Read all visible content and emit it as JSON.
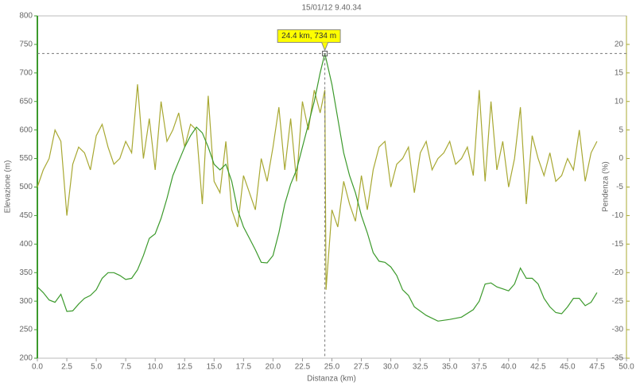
{
  "chart_data": {
    "type": "line",
    "title": "15/01/12 9.40.34",
    "x_label": "Distanza (km)",
    "y_label": "Elevazione (m)",
    "y2_label": "Pendenza (%)",
    "xlim": [
      0,
      50
    ],
    "xticks": [
      {
        "value": 0,
        "label": "0.0"
      },
      2.5,
      {
        "value": 5,
        "label": "5.0"
      },
      7.5,
      {
        "value": 10,
        "label": "10.0"
      },
      12.5,
      {
        "value": 15,
        "label": "15.0"
      },
      17.5,
      {
        "value": 20,
        "label": "20.0"
      },
      22.5,
      {
        "value": 25,
        "label": "25.0"
      },
      27.5,
      {
        "value": 30,
        "label": "30.0"
      },
      32.5,
      {
        "value": 35,
        "label": "35.0"
      },
      37.5,
      {
        "value": 40,
        "label": "40.0"
      },
      42.5,
      {
        "value": 45,
        "label": "45.0"
      },
      47.5,
      {
        "value": 50,
        "label": "50.0"
      }
    ],
    "ylim": [
      200,
      800
    ],
    "yticks": [
      200,
      250,
      300,
      350,
      400,
      450,
      500,
      550,
      600,
      650,
      700,
      750,
      800
    ],
    "y2lim": [
      -35,
      25
    ],
    "y2ticks": [
      -35,
      -30,
      -25,
      -20,
      -15,
      -10,
      -5,
      0,
      5,
      10,
      15,
      20
    ],
    "grid": false,
    "annotation": {
      "text": "24.4 km, 734 m",
      "x": 24.4,
      "y": 734
    },
    "series": [
      {
        "name": "Elevazione",
        "color": "#3c9a2c",
        "axis": "y",
        "x": [
          0,
          0.5,
          1,
          1.5,
          2,
          2.5,
          3,
          3.5,
          4,
          4.5,
          5,
          5.5,
          6,
          6.5,
          7,
          7.5,
          8,
          8.5,
          9,
          9.5,
          10,
          10.5,
          11,
          11.5,
          12,
          12.5,
          13,
          13.5,
          14,
          14.5,
          15,
          15.5,
          16,
          16.5,
          17,
          17.5,
          18,
          18.5,
          19,
          19.5,
          20,
          20.5,
          21,
          21.5,
          22,
          22.5,
          23,
          23.5,
          24,
          24.4,
          25,
          25.5,
          26,
          26.5,
          27,
          27.5,
          28,
          28.5,
          29,
          29.5,
          30,
          30.5,
          31,
          31.5,
          32,
          33,
          34,
          35,
          36,
          37,
          37.5,
          38,
          38.5,
          39,
          40,
          40.5,
          41,
          41.5,
          42,
          42.5,
          43,
          43.5,
          44,
          44.5,
          45,
          45.5,
          46,
          46.5,
          47,
          47.5
        ],
        "values": [
          325,
          315,
          302,
          298,
          312,
          282,
          283,
          295,
          305,
          310,
          320,
          340,
          350,
          350,
          345,
          338,
          340,
          355,
          380,
          410,
          418,
          445,
          480,
          520,
          545,
          570,
          590,
          605,
          595,
          570,
          540,
          530,
          540,
          510,
          460,
          430,
          410,
          390,
          368,
          367,
          380,
          420,
          470,
          505,
          530,
          570,
          610,
          650,
          700,
          734,
          680,
          620,
          560,
          520,
          490,
          450,
          420,
          385,
          370,
          368,
          360,
          345,
          320,
          310,
          290,
          275,
          265,
          268,
          272,
          285,
          300,
          330,
          332,
          325,
          318,
          330,
          358,
          340,
          340,
          330,
          305,
          290,
          280,
          278,
          290,
          305,
          305,
          292,
          298,
          315
        ]
      },
      {
        "name": "Pendenza",
        "color": "#a8a832",
        "axis": "y2",
        "x": [
          0,
          0.5,
          1,
          1.5,
          2,
          2.5,
          3,
          3.5,
          4,
          4.5,
          5,
          5.5,
          6,
          6.5,
          7,
          7.5,
          8,
          8.5,
          9,
          9.5,
          10,
          10.5,
          11,
          11.5,
          12,
          12.5,
          13,
          13.5,
          14,
          14.5,
          15,
          15.5,
          16,
          16.5,
          17,
          17.5,
          18,
          18.5,
          19,
          19.5,
          20,
          20.5,
          21,
          21.5,
          22,
          22.5,
          23,
          23.5,
          24,
          24.4,
          24.5,
          25,
          25.5,
          26,
          26.5,
          27,
          27.5,
          28,
          28.5,
          29,
          29.5,
          30,
          30.5,
          31,
          31.5,
          32,
          32.5,
          33,
          33.5,
          34,
          34.5,
          35,
          35.5,
          36,
          36.5,
          37,
          37.5,
          38,
          38.5,
          39,
          39.5,
          40,
          40.5,
          41,
          41.5,
          42,
          42.5,
          43,
          43.5,
          44,
          44.5,
          45,
          45.5,
          46,
          46.5,
          47,
          47.5
        ],
        "values": [
          -5,
          -2,
          0,
          5,
          3,
          -10,
          -1,
          2,
          1,
          -2,
          4,
          6,
          2,
          -1,
          0,
          3,
          1,
          13,
          0,
          7,
          -2,
          10,
          3,
          5,
          8,
          2,
          6,
          5,
          -8,
          11,
          -4,
          -6,
          3,
          -9,
          -12,
          -3,
          -6,
          -9,
          0,
          -4,
          2,
          9,
          -2,
          7,
          -4,
          10,
          5,
          12,
          8,
          12,
          -23,
          -9,
          -12,
          -4,
          -8,
          -11,
          -3,
          -9,
          -2,
          2,
          3,
          -5,
          -1,
          0,
          2,
          -6,
          1,
          3,
          -2,
          0,
          1,
          3,
          -1,
          0,
          2,
          -3,
          12,
          -4,
          10,
          -2,
          3,
          -5,
          0,
          9,
          -8,
          4,
          0,
          -3,
          1,
          -4,
          -3,
          0,
          -2,
          5,
          -4,
          1,
          3
        ]
      }
    ]
  }
}
